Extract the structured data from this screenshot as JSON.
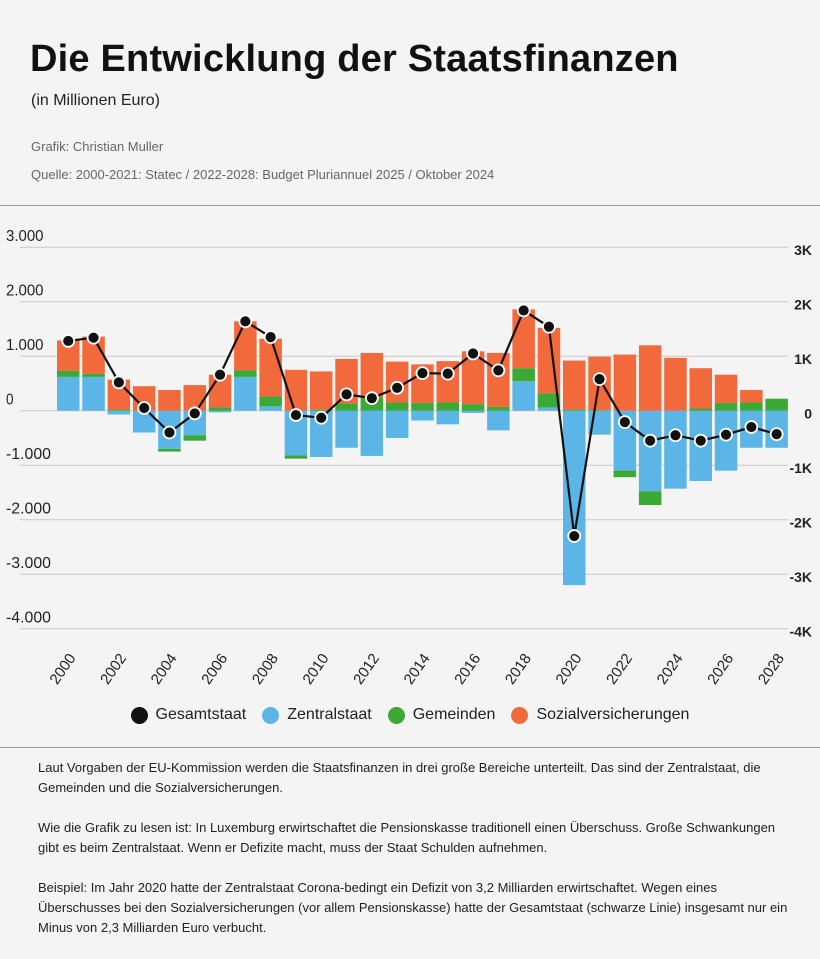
{
  "header": {
    "title": "Die Entwicklung der Staatsfinanzen",
    "subtitle": "(in Millionen Euro)",
    "credit": "Grafik: Christian Muller",
    "source": "Quelle: 2000-2021:   Statec / 2022-2028: Budget Pluriannuel 2025 / Oktober 2024"
  },
  "colors": {
    "Gesamtstaat": "#111111",
    "Zentralstaat": "#5bb5e6",
    "Gemeinden": "#3aa935",
    "Sozialversicherungen": "#f26a3b"
  },
  "chart_data": {
    "type": "bar",
    "stacked": true,
    "ylim": [
      -4000,
      3000
    ],
    "grid": true,
    "legend_position": "bottom",
    "left_ticks": [
      "3.000",
      "2.000",
      "1.000",
      "0",
      "-1.000",
      "-2.000",
      "-3.000",
      "-4.000"
    ],
    "right_ticks": [
      "3K",
      "2K",
      "1K",
      "0",
      "-1K",
      "-2K",
      "-3K",
      "-4K"
    ],
    "tick_values": [
      3000,
      2000,
      1000,
      0,
      -1000,
      -2000,
      -3000,
      -4000
    ],
    "x": [
      2000,
      2001,
      2002,
      2003,
      2004,
      2005,
      2006,
      2007,
      2008,
      2009,
      2010,
      2011,
      2012,
      2013,
      2014,
      2015,
      2016,
      2017,
      2018,
      2019,
      2020,
      2021,
      2022,
      2023,
      2024,
      2025,
      2026,
      2027,
      2028
    ],
    "x_tick_labels": [
      "2000",
      "2002",
      "2004",
      "2006",
      "2008",
      "2010",
      "2012",
      "2014",
      "2016",
      "2018",
      "2020",
      "2022",
      "2024",
      "2026",
      "2028"
    ],
    "series": [
      {
        "name": "Zentralstaat",
        "kind": "bar",
        "values": [
          620,
          620,
          -70,
          -400,
          -700,
          -450,
          -30,
          620,
          80,
          -820,
          -850,
          -680,
          -830,
          -500,
          -180,
          -250,
          -40,
          -360,
          540,
          60,
          -3200,
          -440,
          -1100,
          -1480,
          -1430,
          -1290,
          -1100,
          -680,
          -680
        ]
      },
      {
        "name": "Gemeinden",
        "kind": "bar",
        "values": [
          110,
          60,
          20,
          0,
          -50,
          -100,
          60,
          120,
          180,
          -60,
          20,
          130,
          250,
          150,
          140,
          150,
          120,
          70,
          240,
          260,
          20,
          10,
          -120,
          -250,
          0,
          40,
          140,
          150,
          220
        ]
      },
      {
        "name": "Sozialversicherungen",
        "kind": "bar",
        "values": [
          560,
          680,
          550,
          450,
          380,
          470,
          600,
          900,
          1060,
          750,
          700,
          820,
          810,
          750,
          710,
          760,
          970,
          990,
          1080,
          1200,
          900,
          980,
          1030,
          1200,
          970,
          740,
          520,
          230,
          0
        ]
      },
      {
        "name": "Gesamtstaat",
        "kind": "line",
        "values": [
          1280,
          1340,
          520,
          50,
          -400,
          -50,
          660,
          1640,
          1350,
          -80,
          -130,
          300,
          230,
          420,
          690,
          680,
          1050,
          740,
          1840,
          1540,
          -2300,
          580,
          -210,
          -550,
          -450,
          -550,
          -440,
          -300,
          -430
        ]
      }
    ]
  },
  "notes": [
    "Laut Vorgaben der EU-Kommission werden die Staatsfinanzen in drei große Bereiche unterteilt. Das sind der Zentralstaat, die Gemeinden und die Sozialversicherungen.",
    "Wie die Grafik zu lesen ist: In Luxemburg erwirtschaftet die Pensionskasse traditionell einen Überschuss. Große Schwankungen gibt es beim Zentralstaat. Wenn er Defizite macht, muss der Staat Schulden aufnehmen.",
    "Beispiel: Im Jahr 2020 hatte der Zentralstaat Corona-bedingt ein Defizit von 3,2 Milliarden erwirtschaftet. Wegen eines Überschusses bei den Sozialversicherungen (vor allem Pensionskasse) hatte der Gesamtstaat (schwarze Linie) insgesamt nur ein Minus von 2,3 Milliarden Euro verbucht."
  ]
}
